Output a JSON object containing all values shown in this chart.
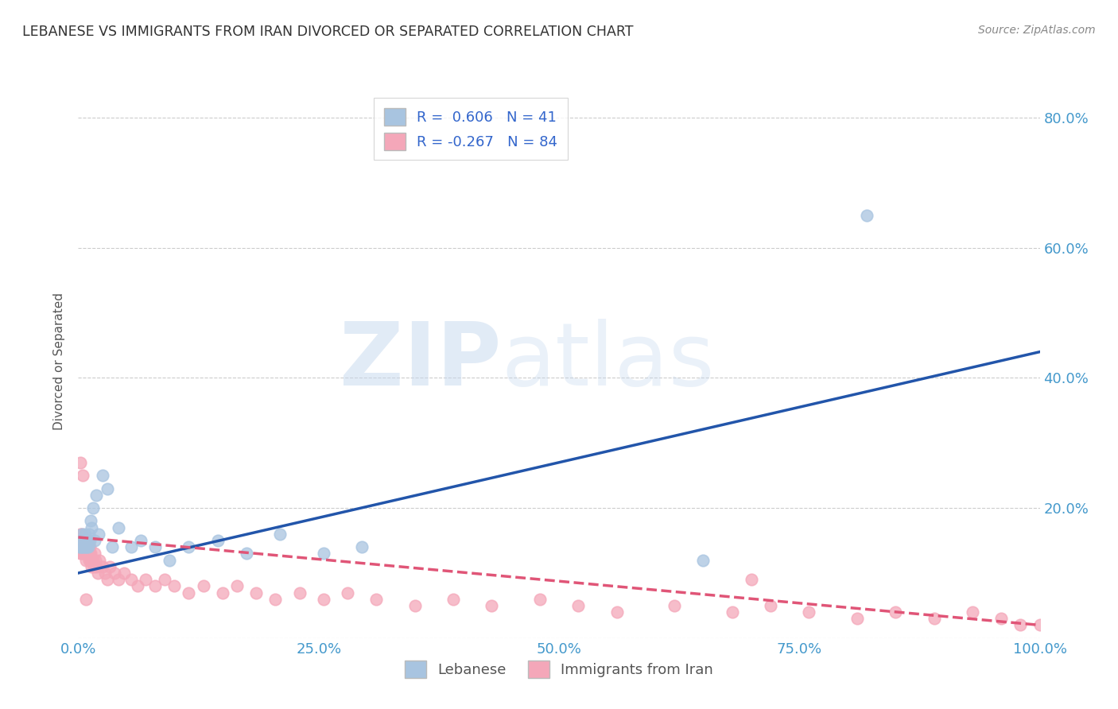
{
  "title": "LEBANESE VS IMMIGRANTS FROM IRAN DIVORCED OR SEPARATED CORRELATION CHART",
  "source": "Source: ZipAtlas.com",
  "ylabel": "Divorced or Separated",
  "watermark_left": "ZIP",
  "watermark_right": "atlas",
  "blue_R": 0.606,
  "blue_N": 41,
  "pink_R": -0.267,
  "pink_N": 84,
  "blue_color": "#a8c4e0",
  "pink_color": "#f4a7b9",
  "blue_line_color": "#2255aa",
  "pink_line_color": "#e05577",
  "legend_text_color": "#3366cc",
  "title_color": "#333333",
  "grid_color": "#cccccc",
  "axis_label_color": "#4499cc",
  "blue_scatter_x": [
    0.001,
    0.002,
    0.003,
    0.003,
    0.004,
    0.004,
    0.005,
    0.005,
    0.006,
    0.006,
    0.007,
    0.007,
    0.008,
    0.008,
    0.009,
    0.01,
    0.01,
    0.011,
    0.012,
    0.013,
    0.014,
    0.015,
    0.017,
    0.019,
    0.021,
    0.025,
    0.03,
    0.035,
    0.042,
    0.055,
    0.065,
    0.08,
    0.095,
    0.115,
    0.145,
    0.175,
    0.21,
    0.255,
    0.295,
    0.65,
    0.82
  ],
  "blue_scatter_y": [
    0.14,
    0.14,
    0.15,
    0.15,
    0.14,
    0.16,
    0.15,
    0.14,
    0.15,
    0.14,
    0.16,
    0.15,
    0.14,
    0.15,
    0.14,
    0.15,
    0.14,
    0.16,
    0.15,
    0.18,
    0.17,
    0.2,
    0.15,
    0.22,
    0.16,
    0.25,
    0.23,
    0.14,
    0.17,
    0.14,
    0.15,
    0.14,
    0.12,
    0.14,
    0.15,
    0.13,
    0.16,
    0.13,
    0.14,
    0.12,
    0.65
  ],
  "pink_scatter_x": [
    0.001,
    0.001,
    0.002,
    0.002,
    0.002,
    0.003,
    0.003,
    0.003,
    0.004,
    0.004,
    0.004,
    0.005,
    0.005,
    0.005,
    0.006,
    0.006,
    0.006,
    0.007,
    0.007,
    0.007,
    0.008,
    0.008,
    0.009,
    0.009,
    0.01,
    0.01,
    0.011,
    0.011,
    0.012,
    0.012,
    0.013,
    0.013,
    0.014,
    0.015,
    0.016,
    0.017,
    0.018,
    0.019,
    0.02,
    0.022,
    0.025,
    0.028,
    0.03,
    0.033,
    0.038,
    0.042,
    0.048,
    0.055,
    0.062,
    0.07,
    0.08,
    0.09,
    0.1,
    0.115,
    0.13,
    0.15,
    0.165,
    0.185,
    0.205,
    0.23,
    0.255,
    0.28,
    0.31,
    0.35,
    0.39,
    0.43,
    0.48,
    0.52,
    0.56,
    0.62,
    0.68,
    0.72,
    0.76,
    0.81,
    0.85,
    0.89,
    0.93,
    0.96,
    0.98,
    1.0,
    0.002,
    0.005,
    0.008,
    0.7
  ],
  "pink_scatter_y": [
    0.14,
    0.15,
    0.13,
    0.14,
    0.16,
    0.14,
    0.15,
    0.13,
    0.14,
    0.16,
    0.15,
    0.14,
    0.13,
    0.15,
    0.14,
    0.15,
    0.13,
    0.14,
    0.15,
    0.13,
    0.14,
    0.12,
    0.14,
    0.13,
    0.15,
    0.13,
    0.14,
    0.12,
    0.13,
    0.14,
    0.12,
    0.13,
    0.11,
    0.12,
    0.11,
    0.13,
    0.12,
    0.11,
    0.1,
    0.12,
    0.11,
    0.1,
    0.09,
    0.11,
    0.1,
    0.09,
    0.1,
    0.09,
    0.08,
    0.09,
    0.08,
    0.09,
    0.08,
    0.07,
    0.08,
    0.07,
    0.08,
    0.07,
    0.06,
    0.07,
    0.06,
    0.07,
    0.06,
    0.05,
    0.06,
    0.05,
    0.06,
    0.05,
    0.04,
    0.05,
    0.04,
    0.05,
    0.04,
    0.03,
    0.04,
    0.03,
    0.04,
    0.03,
    0.02,
    0.02,
    0.27,
    0.25,
    0.06,
    0.09
  ],
  "blue_line_x": [
    0.0,
    1.0
  ],
  "blue_line_y": [
    0.1,
    0.44
  ],
  "pink_line_x": [
    0.0,
    1.0
  ],
  "pink_line_y": [
    0.155,
    0.02
  ],
  "xlim": [
    0.0,
    1.0
  ],
  "ylim": [
    0.0,
    0.85
  ],
  "yticks": [
    0.0,
    0.2,
    0.4,
    0.6,
    0.8
  ],
  "ytick_labels_right": [
    "",
    "20.0%",
    "40.0%",
    "60.0%",
    "80.0%"
  ],
  "xticks": [
    0.0,
    0.25,
    0.5,
    0.75,
    1.0
  ],
  "xtick_labels": [
    "0.0%",
    "25.0%",
    "50.0%",
    "75.0%",
    "100.0%"
  ],
  "background_color": "#ffffff"
}
